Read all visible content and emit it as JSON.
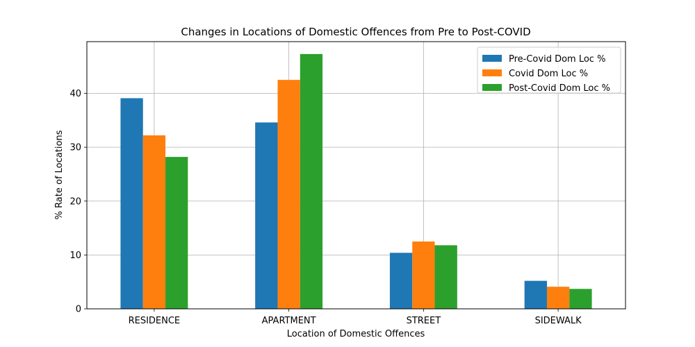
{
  "chart_data": {
    "type": "bar",
    "title": "Changes in Locations of Domestic Offences from Pre to Post-COVID",
    "xlabel": "Location of Domestic Offences",
    "ylabel": "% Rate of Locations",
    "categories": [
      "RESIDENCE",
      "APARTMENT",
      "STREET",
      "SIDEWALK"
    ],
    "series": [
      {
        "name": "Pre-Covid Dom Loc %",
        "color": "#1f77b4",
        "values": [
          39.1,
          34.6,
          10.4,
          5.2
        ]
      },
      {
        "name": "Covid Dom Loc %",
        "color": "#ff7f0e",
        "values": [
          32.2,
          42.5,
          12.5,
          4.1
        ]
      },
      {
        "name": "Post-Covid Dom Loc %",
        "color": "#2ca02c",
        "values": [
          28.2,
          47.3,
          11.8,
          3.7
        ]
      }
    ],
    "ylim": [
      0,
      49.6
    ],
    "yticks": [
      0,
      10,
      20,
      30,
      40
    ],
    "grid": true,
    "legend_position": "top-right"
  }
}
